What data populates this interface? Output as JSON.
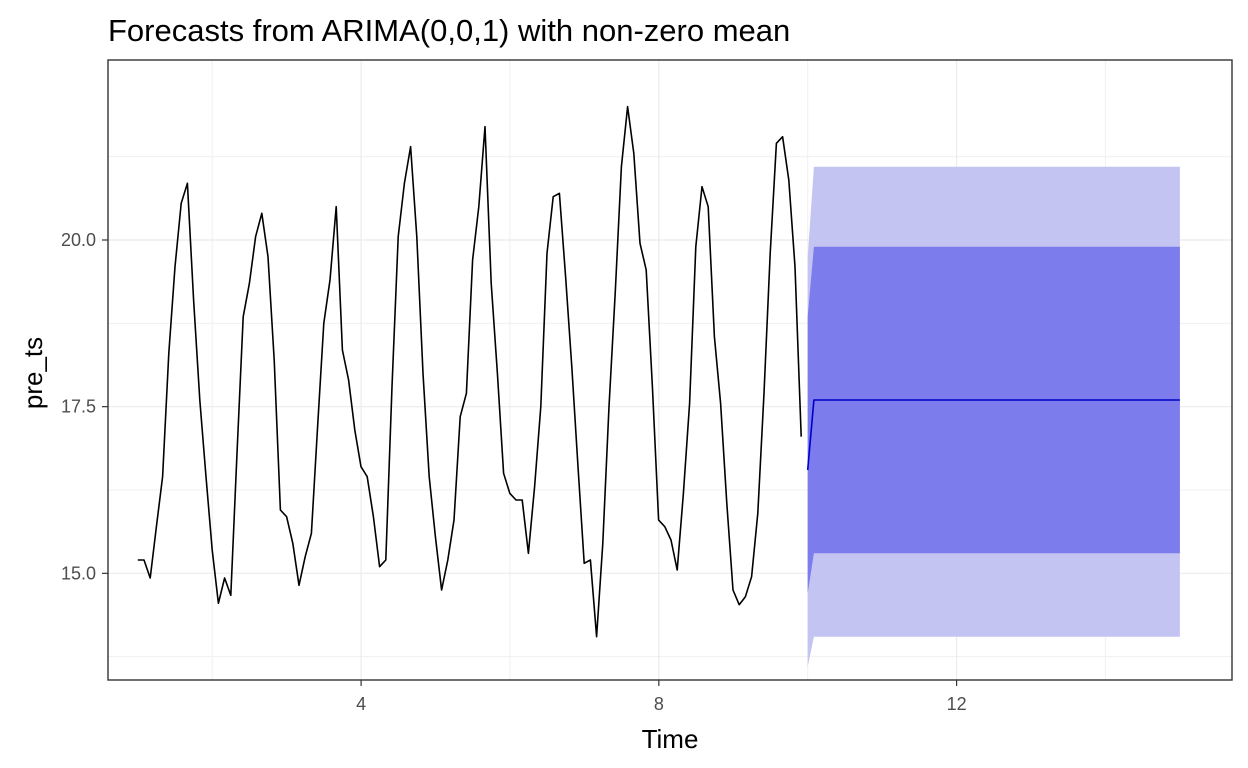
{
  "chart_data": {
    "type": "line",
    "title": "Forecasts from ARIMA(0,0,1) with non-zero mean",
    "xlabel": "Time",
    "ylabel": "pre_ts",
    "xlim": [
      0.6,
      15.7
    ],
    "ylim": [
      13.4,
      22.7
    ],
    "x_ticks": [
      4,
      8,
      12
    ],
    "y_ticks": [
      15.0,
      17.5,
      20.0
    ],
    "x_tick_labels": [
      "4",
      "8",
      "12"
    ],
    "y_tick_labels": [
      "15.0",
      "17.5",
      "20.0"
    ],
    "grid": true,
    "series": [
      {
        "role": "observed",
        "color": "#000000",
        "start": 1.0,
        "step": 0.0833,
        "values": [
          15.2,
          15.2,
          14.93,
          15.7,
          16.45,
          18.3,
          19.6,
          20.55,
          20.85,
          19.1,
          17.6,
          16.45,
          15.35,
          14.55,
          14.93,
          14.67,
          16.8,
          18.85,
          19.35,
          20.05,
          20.4,
          19.75,
          18.2,
          15.95,
          15.85,
          15.45,
          14.82,
          15.25,
          15.6,
          17.2,
          18.75,
          19.4,
          20.5,
          18.35,
          17.9,
          17.15,
          16.6,
          16.45,
          15.85,
          15.1,
          15.2,
          17.8,
          20.05,
          20.85,
          21.4,
          20.05,
          18.0,
          16.45,
          15.55,
          14.75,
          15.2,
          15.8,
          17.35,
          17.7,
          19.7,
          20.5,
          21.7,
          19.35,
          18.0,
          16.5,
          16.2,
          16.1,
          16.1,
          15.3,
          16.3,
          17.5,
          19.8,
          20.65,
          20.7,
          19.45,
          18.1,
          16.6,
          15.15,
          15.2,
          14.05,
          15.45,
          17.5,
          19.2,
          21.1,
          22.0,
          21.3,
          19.95,
          19.55,
          17.8,
          15.8,
          15.7,
          15.5,
          15.05,
          16.2,
          17.55,
          19.9,
          20.8,
          20.5,
          18.55,
          17.55,
          16.05,
          14.75,
          14.53,
          14.65,
          14.95,
          15.9,
          17.7,
          19.8,
          21.45,
          21.55,
          20.9,
          19.6,
          17.05
        ]
      },
      {
        "role": "point_forecast",
        "color": "#0000cc",
        "x": [
          10.0,
          10.0833,
          15.0
        ],
        "values": [
          16.55,
          17.6,
          17.6
        ]
      }
    ],
    "intervals": [
      {
        "level": "95",
        "color": "#c4c4f3",
        "x": [
          10.0,
          10.0833,
          15.0
        ],
        "upper": [
          19.75,
          21.1,
          21.1
        ],
        "lower": [
          13.6,
          14.05,
          14.05
        ]
      },
      {
        "level": "80",
        "color": "#7c7ced",
        "x": [
          10.0,
          10.0833,
          15.0
        ],
        "upper": [
          18.85,
          19.9,
          19.9
        ],
        "lower": [
          14.7,
          15.3,
          15.3
        ]
      }
    ]
  }
}
